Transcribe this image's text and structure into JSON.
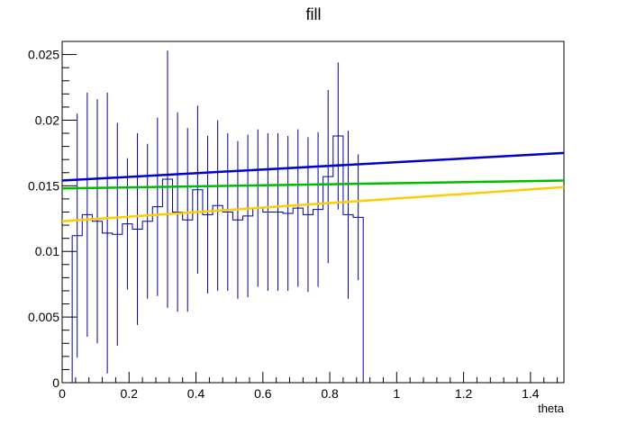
{
  "chart_data": {
    "type": "histogram",
    "title": "fill",
    "xlabel": "theta",
    "ylabel": "",
    "xlim": [
      0,
      1.5
    ],
    "ylim": [
      0,
      0.026
    ],
    "x_ticks": [
      0,
      0.2,
      0.4,
      0.6,
      0.8,
      1,
      1.2,
      1.4
    ],
    "x_tick_labels": [
      "0",
      "0.2",
      "0.4",
      "0.6",
      "0.8",
      "1",
      "1.2",
      "1.4"
    ],
    "y_ticks": [
      0,
      0.005,
      0.01,
      0.015,
      0.02,
      0.025
    ],
    "y_tick_labels": [
      "0",
      "0.005",
      "0.01",
      "0.015",
      "0.02",
      "0.025"
    ],
    "histogram": {
      "color": "#000099",
      "bin_edges": [
        0.03,
        0.06,
        0.09,
        0.12,
        0.15,
        0.18,
        0.21,
        0.24,
        0.27,
        0.3,
        0.33,
        0.36,
        0.39,
        0.42,
        0.45,
        0.48,
        0.51,
        0.54,
        0.57,
        0.6,
        0.63,
        0.66,
        0.69,
        0.72,
        0.75,
        0.78,
        0.81,
        0.84,
        0.87,
        0.9
      ],
      "values": [
        0.0112,
        0.0128,
        0.0123,
        0.0114,
        0.0113,
        0.0121,
        0.0117,
        0.0123,
        0.0134,
        0.0155,
        0.013,
        0.0124,
        0.0147,
        0.0128,
        0.0135,
        0.013,
        0.0124,
        0.0127,
        0.0133,
        0.013,
        0.013,
        0.0129,
        0.0133,
        0.0128,
        0.0132,
        0.0157,
        0.0188,
        0.0128,
        0.0126
      ],
      "errors": [
        0.0093,
        0.0093,
        0.0093,
        0.0107,
        0.0085,
        0.005,
        0.0073,
        0.0059,
        0.0068,
        0.0098,
        0.0076,
        0.007,
        0.0064,
        0.006,
        0.0065,
        0.006,
        0.006,
        0.0062,
        0.006,
        0.006,
        0.006,
        0.0059,
        0.006,
        0.0059,
        0.0059,
        0.0066,
        0.0056,
        0.0064,
        0.0048
      ]
    },
    "series": [
      {
        "color": "#0000cc",
        "x": [
          0,
          1.5
        ],
        "values": [
          0.0154,
          0.0175
        ]
      },
      {
        "color": "#00bb00",
        "x": [
          0,
          1.5
        ],
        "values": [
          0.0148,
          0.0154
        ]
      },
      {
        "color": "#ffcc00",
        "x": [
          0,
          1.5
        ],
        "values": [
          0.0123,
          0.0149
        ]
      }
    ]
  }
}
